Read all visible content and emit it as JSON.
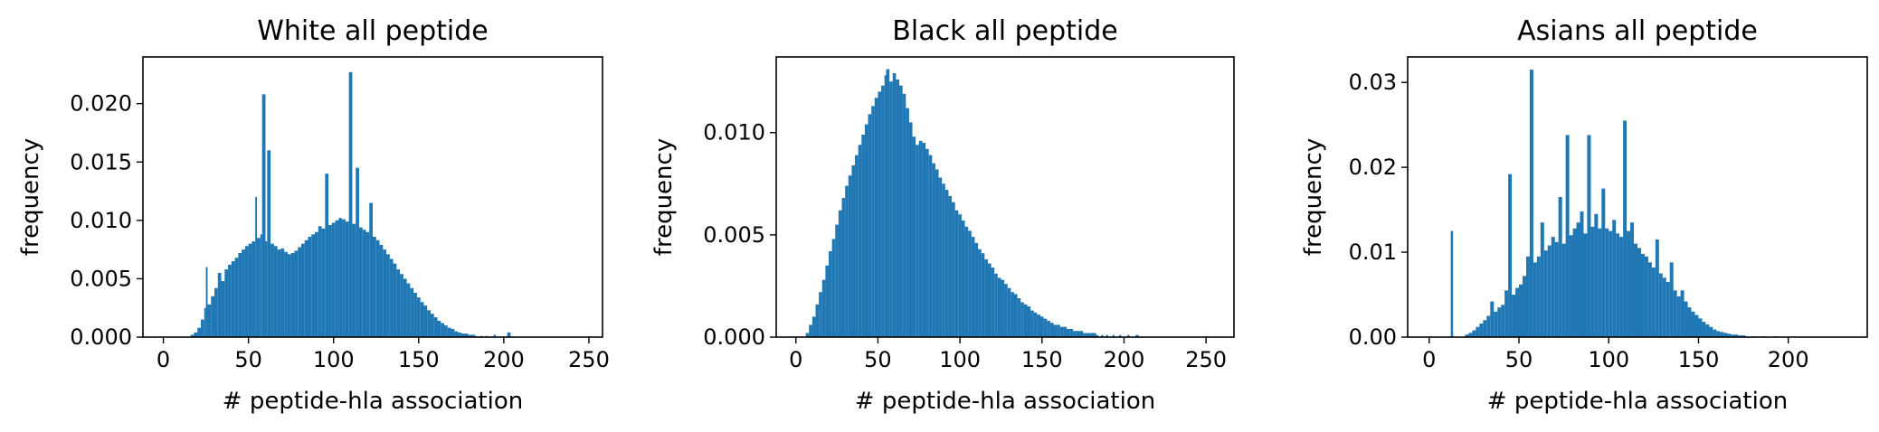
{
  "colors": {
    "bar": "#1f77b4",
    "axis": "#000000"
  },
  "chart_data": [
    {
      "type": "bar",
      "title": "White  all peptide",
      "xlabel": "# peptide-hla association",
      "ylabel": "frequency",
      "xlim": [
        -12,
        258
      ],
      "ylim": [
        0,
        0.024
      ],
      "xticks": [
        0,
        50,
        100,
        150,
        200,
        250
      ],
      "xtick_labels": [
        "0",
        "50",
        "100",
        "150",
        "200",
        "250"
      ],
      "yticks": [
        0,
        0.005,
        0.01,
        0.015,
        0.02
      ],
      "ytick_labels": [
        "0.000",
        "0.005",
        "0.010",
        "0.015",
        "0.020"
      ],
      "grid": false,
      "bins": [
        {
          "x": 16,
          "y": 0.0002
        },
        {
          "x": 18,
          "y": 0.0004
        },
        {
          "x": 20,
          "y": 0.0008
        },
        {
          "x": 22,
          "y": 0.0015
        },
        {
          "x": 24,
          "y": 0.0025
        },
        {
          "x": 25,
          "y": 0.006
        },
        {
          "x": 26,
          "y": 0.0028
        },
        {
          "x": 28,
          "y": 0.0035
        },
        {
          "x": 30,
          "y": 0.0042
        },
        {
          "x": 32,
          "y": 0.0055
        },
        {
          "x": 34,
          "y": 0.0048
        },
        {
          "x": 36,
          "y": 0.0058
        },
        {
          "x": 38,
          "y": 0.0062
        },
        {
          "x": 40,
          "y": 0.0065
        },
        {
          "x": 42,
          "y": 0.0068
        },
        {
          "x": 44,
          "y": 0.0072
        },
        {
          "x": 46,
          "y": 0.0075
        },
        {
          "x": 48,
          "y": 0.0078
        },
        {
          "x": 50,
          "y": 0.008
        },
        {
          "x": 52,
          "y": 0.0082
        },
        {
          "x": 54,
          "y": 0.012
        },
        {
          "x": 55,
          "y": 0.0085
        },
        {
          "x": 57,
          "y": 0.0088
        },
        {
          "x": 58,
          "y": 0.0208
        },
        {
          "x": 60,
          "y": 0.0082
        },
        {
          "x": 61,
          "y": 0.016
        },
        {
          "x": 63,
          "y": 0.008
        },
        {
          "x": 65,
          "y": 0.0078
        },
        {
          "x": 67,
          "y": 0.0075
        },
        {
          "x": 69,
          "y": 0.0076
        },
        {
          "x": 71,
          "y": 0.0073
        },
        {
          "x": 73,
          "y": 0.0071
        },
        {
          "x": 75,
          "y": 0.0072
        },
        {
          "x": 77,
          "y": 0.0074
        },
        {
          "x": 79,
          "y": 0.0077
        },
        {
          "x": 81,
          "y": 0.008
        },
        {
          "x": 83,
          "y": 0.0083
        },
        {
          "x": 85,
          "y": 0.0086
        },
        {
          "x": 87,
          "y": 0.0088
        },
        {
          "x": 89,
          "y": 0.009
        },
        {
          "x": 91,
          "y": 0.0095
        },
        {
          "x": 93,
          "y": 0.0093
        },
        {
          "x": 95,
          "y": 0.014
        },
        {
          "x": 97,
          "y": 0.0096
        },
        {
          "x": 99,
          "y": 0.0098
        },
        {
          "x": 101,
          "y": 0.01
        },
        {
          "x": 103,
          "y": 0.0102
        },
        {
          "x": 105,
          "y": 0.0101
        },
        {
          "x": 107,
          "y": 0.0099
        },
        {
          "x": 109,
          "y": 0.0227
        },
        {
          "x": 111,
          "y": 0.0097
        },
        {
          "x": 113,
          "y": 0.0145
        },
        {
          "x": 115,
          "y": 0.0094
        },
        {
          "x": 117,
          "y": 0.0092
        },
        {
          "x": 119,
          "y": 0.009
        },
        {
          "x": 121,
          "y": 0.0115
        },
        {
          "x": 123,
          "y": 0.0086
        },
        {
          "x": 125,
          "y": 0.0083
        },
        {
          "x": 127,
          "y": 0.0079
        },
        {
          "x": 129,
          "y": 0.0075
        },
        {
          "x": 131,
          "y": 0.0071
        },
        {
          "x": 133,
          "y": 0.0067
        },
        {
          "x": 135,
          "y": 0.0063
        },
        {
          "x": 137,
          "y": 0.0058
        },
        {
          "x": 139,
          "y": 0.0054
        },
        {
          "x": 141,
          "y": 0.005
        },
        {
          "x": 143,
          "y": 0.0046
        },
        {
          "x": 145,
          "y": 0.0042
        },
        {
          "x": 147,
          "y": 0.0038
        },
        {
          "x": 149,
          "y": 0.0034
        },
        {
          "x": 151,
          "y": 0.003
        },
        {
          "x": 153,
          "y": 0.0027
        },
        {
          "x": 155,
          "y": 0.0023
        },
        {
          "x": 157,
          "y": 0.002
        },
        {
          "x": 159,
          "y": 0.0017
        },
        {
          "x": 161,
          "y": 0.0014
        },
        {
          "x": 163,
          "y": 0.0012
        },
        {
          "x": 165,
          "y": 0.001
        },
        {
          "x": 167,
          "y": 0.0008
        },
        {
          "x": 169,
          "y": 0.0007
        },
        {
          "x": 171,
          "y": 0.0005
        },
        {
          "x": 173,
          "y": 0.0004
        },
        {
          "x": 175,
          "y": 0.0003
        },
        {
          "x": 177,
          "y": 0.0003
        },
        {
          "x": 179,
          "y": 0.0002
        },
        {
          "x": 181,
          "y": 0.0002
        },
        {
          "x": 183,
          "y": 0.0001
        },
        {
          "x": 186,
          "y": 0.0001
        },
        {
          "x": 189,
          "y": 0.0001
        },
        {
          "x": 194,
          "y": 0.0002
        },
        {
          "x": 202,
          "y": 0.0004
        }
      ]
    },
    {
      "type": "bar",
      "title": "Black  all peptide",
      "xlabel": "# peptide-hla association",
      "ylabel": "frequency",
      "xlim": [
        -12,
        267
      ],
      "ylim": [
        0,
        0.0137
      ],
      "xticks": [
        0,
        50,
        100,
        150,
        200,
        250
      ],
      "xtick_labels": [
        "0",
        "50",
        "100",
        "150",
        "200",
        "250"
      ],
      "yticks": [
        0,
        0.005,
        0.01
      ],
      "ytick_labels": [
        "0.000",
        "0.005",
        "0.010"
      ],
      "grid": false,
      "bins": [
        {
          "x": 6,
          "y": 0.0002
        },
        {
          "x": 8,
          "y": 0.0006
        },
        {
          "x": 10,
          "y": 0.001
        },
        {
          "x": 12,
          "y": 0.0016
        },
        {
          "x": 14,
          "y": 0.0022
        },
        {
          "x": 16,
          "y": 0.0028
        },
        {
          "x": 18,
          "y": 0.0035
        },
        {
          "x": 20,
          "y": 0.0042
        },
        {
          "x": 22,
          "y": 0.0048
        },
        {
          "x": 24,
          "y": 0.0055
        },
        {
          "x": 26,
          "y": 0.0062
        },
        {
          "x": 28,
          "y": 0.0068
        },
        {
          "x": 30,
          "y": 0.0074
        },
        {
          "x": 32,
          "y": 0.0079
        },
        {
          "x": 34,
          "y": 0.0084
        },
        {
          "x": 36,
          "y": 0.0089
        },
        {
          "x": 38,
          "y": 0.0094
        },
        {
          "x": 40,
          "y": 0.0099
        },
        {
          "x": 42,
          "y": 0.0104
        },
        {
          "x": 44,
          "y": 0.0109
        },
        {
          "x": 46,
          "y": 0.0113
        },
        {
          "x": 48,
          "y": 0.0117
        },
        {
          "x": 50,
          "y": 0.012
        },
        {
          "x": 52,
          "y": 0.0123
        },
        {
          "x": 54,
          "y": 0.0128
        },
        {
          "x": 55,
          "y": 0.0131
        },
        {
          "x": 57,
          "y": 0.0125
        },
        {
          "x": 59,
          "y": 0.0129
        },
        {
          "x": 61,
          "y": 0.0126
        },
        {
          "x": 63,
          "y": 0.0123
        },
        {
          "x": 65,
          "y": 0.0119
        },
        {
          "x": 67,
          "y": 0.0112
        },
        {
          "x": 69,
          "y": 0.0105
        },
        {
          "x": 71,
          "y": 0.0098
        },
        {
          "x": 73,
          "y": 0.0094
        },
        {
          "x": 75,
          "y": 0.0096
        },
        {
          "x": 77,
          "y": 0.0095
        },
        {
          "x": 79,
          "y": 0.0092
        },
        {
          "x": 81,
          "y": 0.0089
        },
        {
          "x": 83,
          "y": 0.0085
        },
        {
          "x": 85,
          "y": 0.0082
        },
        {
          "x": 87,
          "y": 0.0078
        },
        {
          "x": 89,
          "y": 0.0075
        },
        {
          "x": 91,
          "y": 0.0072
        },
        {
          "x": 93,
          "y": 0.0069
        },
        {
          "x": 95,
          "y": 0.0066
        },
        {
          "x": 97,
          "y": 0.0062
        },
        {
          "x": 99,
          "y": 0.006
        },
        {
          "x": 101,
          "y": 0.0057
        },
        {
          "x": 103,
          "y": 0.0054
        },
        {
          "x": 105,
          "y": 0.0052
        },
        {
          "x": 107,
          "y": 0.0049
        },
        {
          "x": 109,
          "y": 0.0046
        },
        {
          "x": 111,
          "y": 0.0043
        },
        {
          "x": 113,
          "y": 0.0041
        },
        {
          "x": 115,
          "y": 0.0038
        },
        {
          "x": 117,
          "y": 0.0036
        },
        {
          "x": 119,
          "y": 0.0034
        },
        {
          "x": 121,
          "y": 0.0031
        },
        {
          "x": 123,
          "y": 0.0029
        },
        {
          "x": 125,
          "y": 0.0028
        },
        {
          "x": 127,
          "y": 0.0026
        },
        {
          "x": 129,
          "y": 0.0024
        },
        {
          "x": 131,
          "y": 0.0022
        },
        {
          "x": 133,
          "y": 0.0021
        },
        {
          "x": 135,
          "y": 0.0019
        },
        {
          "x": 137,
          "y": 0.0017
        },
        {
          "x": 139,
          "y": 0.0016
        },
        {
          "x": 141,
          "y": 0.0015
        },
        {
          "x": 143,
          "y": 0.0013
        },
        {
          "x": 145,
          "y": 0.0012
        },
        {
          "x": 147,
          "y": 0.0011
        },
        {
          "x": 149,
          "y": 0.001
        },
        {
          "x": 151,
          "y": 0.0009
        },
        {
          "x": 153,
          "y": 0.0008
        },
        {
          "x": 155,
          "y": 0.0007
        },
        {
          "x": 157,
          "y": 0.0006
        },
        {
          "x": 159,
          "y": 0.0006
        },
        {
          "x": 161,
          "y": 0.0005
        },
        {
          "x": 163,
          "y": 0.0005
        },
        {
          "x": 165,
          "y": 0.0004
        },
        {
          "x": 167,
          "y": 0.0004
        },
        {
          "x": 169,
          "y": 0.0003
        },
        {
          "x": 171,
          "y": 0.0003
        },
        {
          "x": 173,
          "y": 0.0003
        },
        {
          "x": 175,
          "y": 0.0002
        },
        {
          "x": 177,
          "y": 0.0002
        },
        {
          "x": 179,
          "y": 0.0002
        },
        {
          "x": 181,
          "y": 0.0002
        },
        {
          "x": 183,
          "y": 0.0001
        },
        {
          "x": 186,
          "y": 0.0001
        },
        {
          "x": 189,
          "y": 0.0001
        },
        {
          "x": 193,
          "y": 0.0001
        },
        {
          "x": 197,
          "y": 0.0001
        },
        {
          "x": 202,
          "y": 0.0001
        },
        {
          "x": 207,
          "y": 0.0001
        }
      ]
    },
    {
      "type": "bar",
      "title": "Asians  all peptide",
      "xlabel": "# peptide-hla association",
      "ylabel": "frequency",
      "xlim": [
        -12,
        244
      ],
      "ylim": [
        0,
        0.033
      ],
      "xticks": [
        0,
        50,
        100,
        150,
        200
      ],
      "xtick_labels": [
        "0",
        "50",
        "100",
        "150",
        "200"
      ],
      "yticks": [
        0,
        0.01,
        0.02,
        0.03
      ],
      "ytick_labels": [
        "0.00",
        "0.01",
        "0.02",
        "0.03"
      ],
      "grid": false,
      "bins": [
        {
          "x": 12,
          "y": 0.0125
        },
        {
          "x": 20,
          "y": 0.0003
        },
        {
          "x": 22,
          "y": 0.0005
        },
        {
          "x": 24,
          "y": 0.0008
        },
        {
          "x": 26,
          "y": 0.0012
        },
        {
          "x": 28,
          "y": 0.0016
        },
        {
          "x": 30,
          "y": 0.002
        },
        {
          "x": 32,
          "y": 0.0025
        },
        {
          "x": 34,
          "y": 0.0042
        },
        {
          "x": 36,
          "y": 0.003
        },
        {
          "x": 38,
          "y": 0.0035
        },
        {
          "x": 40,
          "y": 0.0038
        },
        {
          "x": 42,
          "y": 0.0055
        },
        {
          "x": 44,
          "y": 0.0192
        },
        {
          "x": 46,
          "y": 0.005
        },
        {
          "x": 48,
          "y": 0.0058
        },
        {
          "x": 50,
          "y": 0.0062
        },
        {
          "x": 52,
          "y": 0.0072
        },
        {
          "x": 54,
          "y": 0.0095
        },
        {
          "x": 56,
          "y": 0.0315
        },
        {
          "x": 58,
          "y": 0.0088
        },
        {
          "x": 60,
          "y": 0.0095
        },
        {
          "x": 62,
          "y": 0.0135
        },
        {
          "x": 64,
          "y": 0.0102
        },
        {
          "x": 66,
          "y": 0.0108
        },
        {
          "x": 68,
          "y": 0.0118
        },
        {
          "x": 70,
          "y": 0.0112
        },
        {
          "x": 72,
          "y": 0.0165
        },
        {
          "x": 74,
          "y": 0.011
        },
        {
          "x": 76,
          "y": 0.0238
        },
        {
          "x": 78,
          "y": 0.012
        },
        {
          "x": 80,
          "y": 0.0128
        },
        {
          "x": 82,
          "y": 0.0135
        },
        {
          "x": 84,
          "y": 0.0148
        },
        {
          "x": 86,
          "y": 0.0122
        },
        {
          "x": 88,
          "y": 0.0238
        },
        {
          "x": 90,
          "y": 0.013
        },
        {
          "x": 92,
          "y": 0.0145
        },
        {
          "x": 94,
          "y": 0.0128
        },
        {
          "x": 96,
          "y": 0.0175
        },
        {
          "x": 98,
          "y": 0.0128
        },
        {
          "x": 100,
          "y": 0.0125
        },
        {
          "x": 102,
          "y": 0.0138
        },
        {
          "x": 104,
          "y": 0.0122
        },
        {
          "x": 106,
          "y": 0.0118
        },
        {
          "x": 108,
          "y": 0.0255
        },
        {
          "x": 110,
          "y": 0.0125
        },
        {
          "x": 112,
          "y": 0.0135
        },
        {
          "x": 114,
          "y": 0.011
        },
        {
          "x": 116,
          "y": 0.0105
        },
        {
          "x": 118,
          "y": 0.0098
        },
        {
          "x": 120,
          "y": 0.0095
        },
        {
          "x": 122,
          "y": 0.0088
        },
        {
          "x": 124,
          "y": 0.0082
        },
        {
          "x": 126,
          "y": 0.0115
        },
        {
          "x": 128,
          "y": 0.0075
        },
        {
          "x": 130,
          "y": 0.007
        },
        {
          "x": 132,
          "y": 0.0065
        },
        {
          "x": 134,
          "y": 0.0088
        },
        {
          "x": 136,
          "y": 0.0055
        },
        {
          "x": 138,
          "y": 0.0048
        },
        {
          "x": 140,
          "y": 0.0055
        },
        {
          "x": 142,
          "y": 0.0042
        },
        {
          "x": 144,
          "y": 0.0035
        },
        {
          "x": 146,
          "y": 0.003
        },
        {
          "x": 148,
          "y": 0.0026
        },
        {
          "x": 150,
          "y": 0.0022
        },
        {
          "x": 152,
          "y": 0.0018
        },
        {
          "x": 154,
          "y": 0.0015
        },
        {
          "x": 156,
          "y": 0.0012
        },
        {
          "x": 158,
          "y": 0.0009
        },
        {
          "x": 160,
          "y": 0.0007
        },
        {
          "x": 162,
          "y": 0.0006
        },
        {
          "x": 164,
          "y": 0.0005
        },
        {
          "x": 166,
          "y": 0.0004
        },
        {
          "x": 168,
          "y": 0.0003
        },
        {
          "x": 170,
          "y": 0.0003
        },
        {
          "x": 172,
          "y": 0.0002
        },
        {
          "x": 174,
          "y": 0.0002
        },
        {
          "x": 176,
          "y": 0.0001
        },
        {
          "x": 180,
          "y": 0.0001
        },
        {
          "x": 186,
          "y": 0.0001
        },
        {
          "x": 192,
          "y": 0.0001
        }
      ]
    }
  ]
}
